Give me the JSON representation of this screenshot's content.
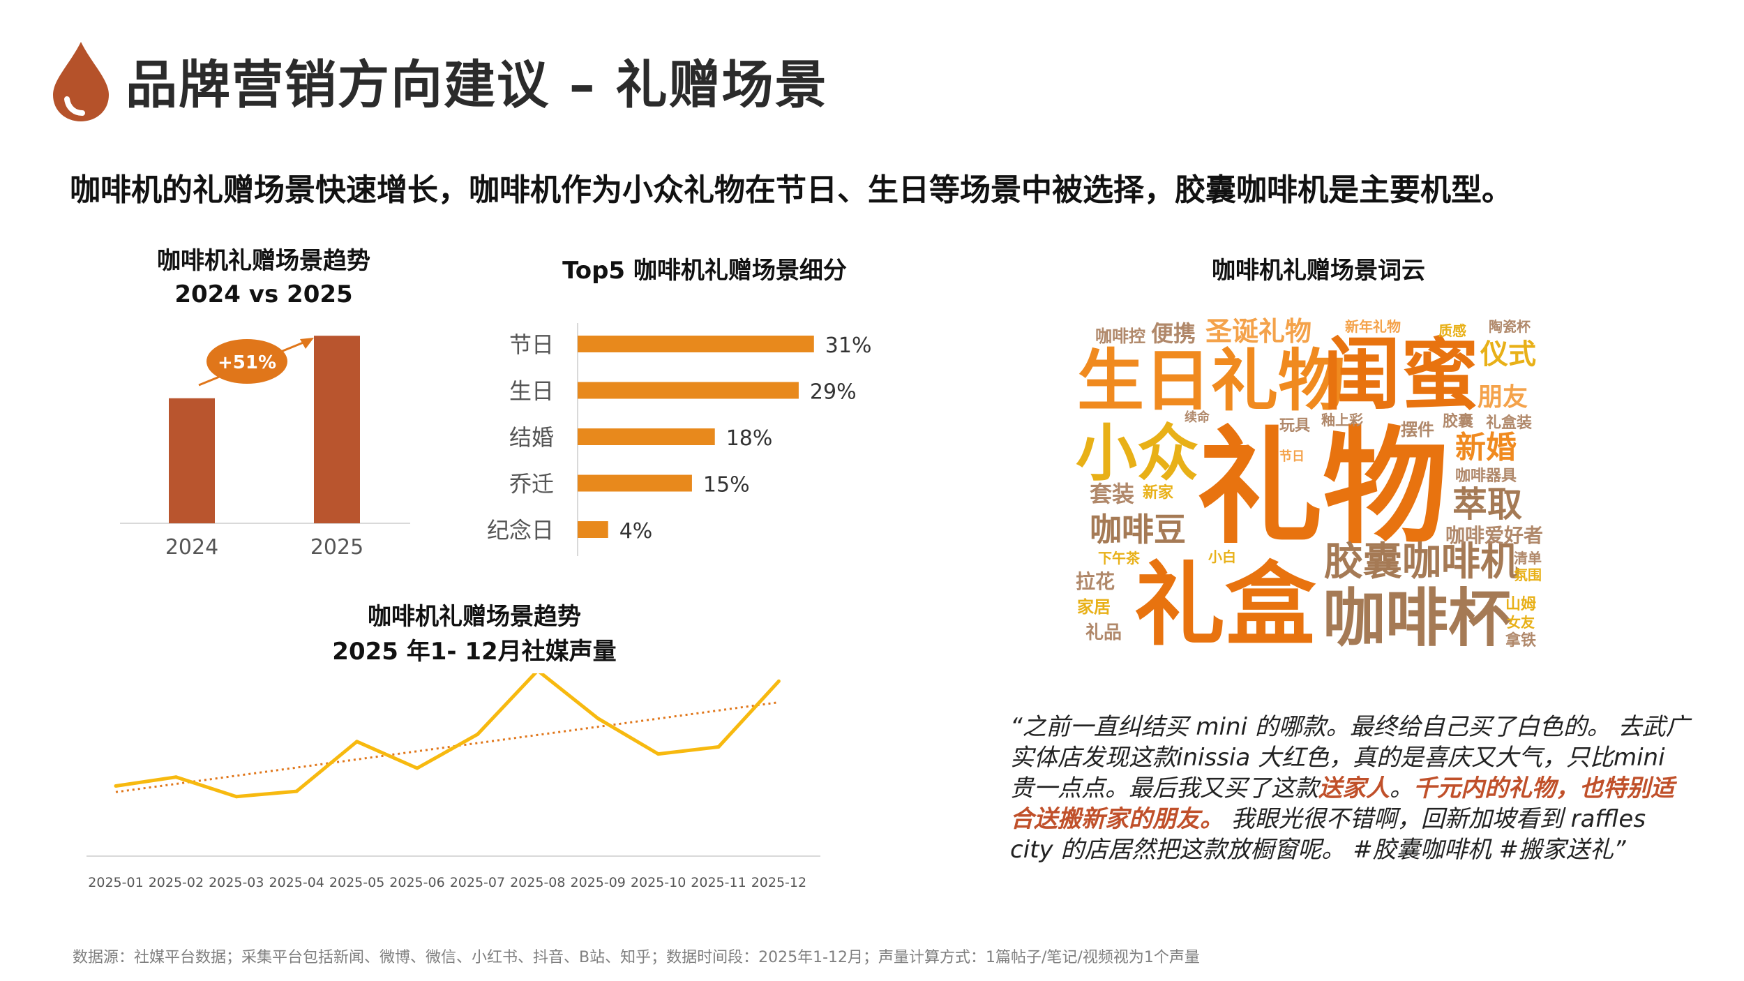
{
  "header": {
    "title": "品牌营销方向建议 – 礼赠场景"
  },
  "headline": "咖啡机的礼赠场景快速增长，咖啡机作为小众礼物在节日、生日等场景中被选择，胶囊咖啡机是主要机型。",
  "colors": {
    "bar_rust": "#b9552e",
    "bar_orange": "#e8891c",
    "line_yellow": "#f7b90f",
    "trend_orange": "#e0761a",
    "logo": "#b5522a",
    "highlight": "#c0502a"
  },
  "chart_data": [
    {
      "type": "bar",
      "title": "咖啡机礼赠场景趋势",
      "subtitle": "2024 vs 2025",
      "categories": [
        "2024",
        "2025"
      ],
      "values": [
        64,
        96
      ],
      "annotation": "+51%"
    },
    {
      "type": "bar",
      "orientation": "horizontal",
      "title": "Top5  咖啡机礼赠场景细分",
      "categories": [
        "节日",
        "生日",
        "结婚",
        "乔迁",
        "纪念日"
      ],
      "values": [
        31,
        29,
        18,
        15,
        4
      ],
      "data_labels": [
        "31%",
        "29%",
        "18%",
        "15%",
        "4%"
      ],
      "xlim": [
        0,
        35
      ]
    },
    {
      "type": "line",
      "title": "咖啡机礼赠场景趋势",
      "subtitle": "2025 年1- 12月社媒声量",
      "x": [
        "2025-01",
        "2025-02",
        "2025-03",
        "2025-04",
        "2025-05",
        "2025-06",
        "2025-07",
        "2025-08",
        "2025-09",
        "2025-10",
        "2025-11",
        "2025-12"
      ],
      "values": [
        34,
        39,
        28,
        31,
        59,
        44,
        63,
        99,
        72,
        52,
        56,
        93
      ],
      "trendline": true,
      "ylim": [
        0,
        110
      ]
    }
  ],
  "wordcloud": {
    "title": "咖啡机礼赠场景词云",
    "words": [
      {
        "text": "礼物",
        "color": "#e8730f"
      },
      {
        "text": "生日礼物",
        "color": "#f08a1f"
      },
      {
        "text": "闺蜜",
        "color": "#e8730f"
      },
      {
        "text": "礼盒",
        "color": "#e8730f"
      },
      {
        "text": "咖啡杯",
        "color": "#a57a55"
      },
      {
        "text": "胶囊咖啡机",
        "color": "#a57a55"
      },
      {
        "text": "小众",
        "color": "#e8b017"
      },
      {
        "text": "圣诞礼物",
        "color": "#f4a24a"
      },
      {
        "text": "咖啡豆",
        "color": "#a57a55"
      },
      {
        "text": "萃取",
        "color": "#a57a55"
      },
      {
        "text": "新婚",
        "color": "#f08a1f"
      },
      {
        "text": "仪式",
        "color": "#e8b017"
      },
      {
        "text": "朋友",
        "color": "#f4a24a"
      },
      {
        "text": "便携",
        "color": "#b0886a"
      },
      {
        "text": "咖啡控",
        "color": "#b0886a"
      },
      {
        "text": "新年礼物",
        "color": "#f4a24a"
      },
      {
        "text": "质感",
        "color": "#e8b017"
      },
      {
        "text": "陶瓷杯",
        "color": "#b0886a"
      },
      {
        "text": "套装",
        "color": "#b0886a"
      },
      {
        "text": "新家",
        "color": "#e8b017"
      },
      {
        "text": "续命",
        "color": "#b0886a"
      },
      {
        "text": "玩具",
        "color": "#b0886a"
      },
      {
        "text": "釉上彩",
        "color": "#b0886a"
      },
      {
        "text": "摆件",
        "color": "#b0886a"
      },
      {
        "text": "胶囊",
        "color": "#b0886a"
      },
      {
        "text": "礼盒装",
        "color": "#b0886a"
      },
      {
        "text": "节日",
        "color": "#f4a24a"
      },
      {
        "text": "咖啡器具",
        "color": "#b0886a"
      },
      {
        "text": "咖啡爱好者",
        "color": "#b0886a"
      },
      {
        "text": "下午茶",
        "color": "#e8b017"
      },
      {
        "text": "小白",
        "color": "#e8b017"
      },
      {
        "text": "拉花",
        "color": "#b0886a"
      },
      {
        "text": "家居",
        "color": "#e8b017"
      },
      {
        "text": "礼品",
        "color": "#b0886a"
      },
      {
        "text": "清单",
        "color": "#b0886a"
      },
      {
        "text": "氛围",
        "color": "#e8b017"
      },
      {
        "text": "山姆",
        "color": "#e8b017"
      },
      {
        "text": "女友",
        "color": "#e8b017"
      },
      {
        "text": "拿铁",
        "color": "#b0886a"
      }
    ]
  },
  "quote": {
    "part1": "“之前一直纠结买  mini 的哪款。最终给自己买了白色的。 去武广实体店发现这款inissia 大红色，真的是喜庆又大气，只比mini 贵一点点。最后我又买了这款",
    "hl1": "送家人",
    "part2": "。",
    "hl2": "千元内的礼物，也特别适合送搬新家的朋友。",
    "part3": " 我眼光很不错啊，回新加坡看到 raffles city  的店居然把这款放橱窗呢。 #胶囊咖啡机 #搬家送礼”"
  },
  "footer": "数据源：社媒平台数据；采集平台包括新闻、微博、微信、小红书、抖音、B站、知乎；数据时间段：2025年1-12月；声量计算方式：1篇帖子/笔记/视频视为1个声量"
}
